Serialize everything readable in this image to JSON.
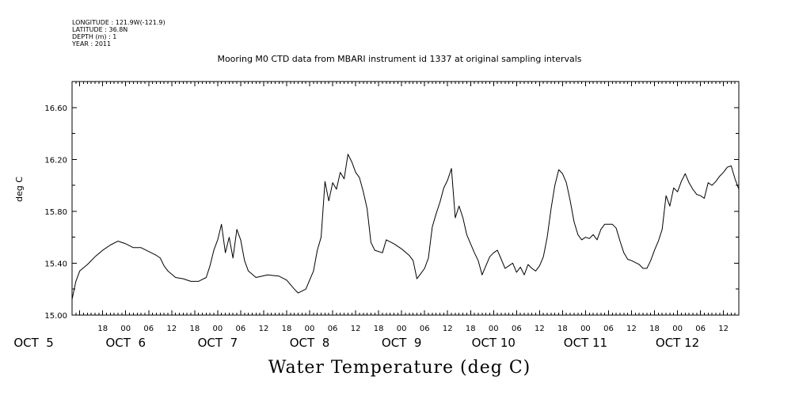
{
  "header": {
    "meta_lines": [
      "LONGITUDE : 121.9W(-121.9)",
      "LATITUDE : 36.8N",
      "DEPTH (m) : 1",
      "YEAR : 2011"
    ],
    "title": "Mooring M0 CTD data from MBARI instrument id 1337 at original sampling intervals"
  },
  "chart_data": {
    "type": "line",
    "title": "Mooring M0 CTD data from MBARI instrument id 1337 at original sampling intervals",
    "xlabel": "Water Temperature (deg C)",
    "ylabel": "deg C",
    "ylim": [
      15.0,
      16.8
    ],
    "yticks": [
      "15.00",
      "15.40",
      "15.80",
      "16.20",
      "16.60"
    ],
    "xlim": [
      "2011-10-05T10:00",
      "2011-10-12T16:00"
    ],
    "x_hour_ticks": [
      {
        "t": "2011-10-05T18:00",
        "label": "18"
      },
      {
        "t": "2011-10-06T00:00",
        "label": "00"
      },
      {
        "t": "2011-10-06T06:00",
        "label": "06"
      },
      {
        "t": "2011-10-06T12:00",
        "label": "12"
      },
      {
        "t": "2011-10-06T18:00",
        "label": "18"
      },
      {
        "t": "2011-10-07T00:00",
        "label": "00"
      },
      {
        "t": "2011-10-07T06:00",
        "label": "06"
      },
      {
        "t": "2011-10-07T12:00",
        "label": "12"
      },
      {
        "t": "2011-10-07T18:00",
        "label": "18"
      },
      {
        "t": "2011-10-08T00:00",
        "label": "00"
      },
      {
        "t": "2011-10-08T06:00",
        "label": "06"
      },
      {
        "t": "2011-10-08T12:00",
        "label": "12"
      },
      {
        "t": "2011-10-08T18:00",
        "label": "18"
      },
      {
        "t": "2011-10-09T00:00",
        "label": "00"
      },
      {
        "t": "2011-10-09T06:00",
        "label": "06"
      },
      {
        "t": "2011-10-09T12:00",
        "label": "12"
      },
      {
        "t": "2011-10-09T18:00",
        "label": "18"
      },
      {
        "t": "2011-10-10T00:00",
        "label": "00"
      },
      {
        "t": "2011-10-10T06:00",
        "label": "06"
      },
      {
        "t": "2011-10-10T12:00",
        "label": "12"
      },
      {
        "t": "2011-10-10T18:00",
        "label": "18"
      },
      {
        "t": "2011-10-11T00:00",
        "label": "00"
      },
      {
        "t": "2011-10-11T06:00",
        "label": "06"
      },
      {
        "t": "2011-10-11T12:00",
        "label": "12"
      },
      {
        "t": "2011-10-11T18:00",
        "label": "18"
      },
      {
        "t": "2011-10-12T00:00",
        "label": "00"
      },
      {
        "t": "2011-10-12T06:00",
        "label": "06"
      },
      {
        "t": "2011-10-12T12:00",
        "label": "12"
      }
    ],
    "x_day_labels": [
      {
        "t": "2011-10-05T00:00",
        "label": "OCT  5"
      },
      {
        "t": "2011-10-06T00:00",
        "label": "OCT  6"
      },
      {
        "t": "2011-10-07T00:00",
        "label": "OCT  7"
      },
      {
        "t": "2011-10-08T00:00",
        "label": "OCT  8"
      },
      {
        "t": "2011-10-09T00:00",
        "label": "OCT  9"
      },
      {
        "t": "2011-10-10T00:00",
        "label": "OCT 10"
      },
      {
        "t": "2011-10-11T00:00",
        "label": "OCT 11"
      },
      {
        "t": "2011-10-12T00:00",
        "label": "OCT 12"
      }
    ],
    "series": [
      {
        "color": "#000000",
        "points": [
          [
            "2011-10-05T10:00",
            15.12
          ],
          [
            "2011-10-05T11:00",
            15.26
          ],
          [
            "2011-10-05T12:00",
            15.34
          ],
          [
            "2011-10-05T14:00",
            15.39
          ],
          [
            "2011-10-05T16:00",
            15.45
          ],
          [
            "2011-10-05T18:00",
            15.5
          ],
          [
            "2011-10-05T20:00",
            15.54
          ],
          [
            "2011-10-05T22:00",
            15.57
          ],
          [
            "2011-10-06T00:00",
            15.55
          ],
          [
            "2011-10-06T02:00",
            15.52
          ],
          [
            "2011-10-06T04:00",
            15.52
          ],
          [
            "2011-10-06T06:00",
            15.49
          ],
          [
            "2011-10-06T08:00",
            15.46
          ],
          [
            "2011-10-06T09:00",
            15.44
          ],
          [
            "2011-10-06T10:00",
            15.38
          ],
          [
            "2011-10-06T11:00",
            15.34
          ],
          [
            "2011-10-06T13:00",
            15.29
          ],
          [
            "2011-10-06T15:00",
            15.28
          ],
          [
            "2011-10-06T17:00",
            15.26
          ],
          [
            "2011-10-06T19:00",
            15.26
          ],
          [
            "2011-10-06T21:00",
            15.29
          ],
          [
            "2011-10-06T22:00",
            15.38
          ],
          [
            "2011-10-06T23:00",
            15.5
          ],
          [
            "2011-10-07T00:00",
            15.58
          ],
          [
            "2011-10-07T01:00",
            15.7
          ],
          [
            "2011-10-07T02:00",
            15.48
          ],
          [
            "2011-10-07T03:00",
            15.6
          ],
          [
            "2011-10-07T04:00",
            15.44
          ],
          [
            "2011-10-07T05:00",
            15.66
          ],
          [
            "2011-10-07T06:00",
            15.58
          ],
          [
            "2011-10-07T07:00",
            15.42
          ],
          [
            "2011-10-07T08:00",
            15.34
          ],
          [
            "2011-10-07T10:00",
            15.29
          ],
          [
            "2011-10-07T13:00",
            15.31
          ],
          [
            "2011-10-07T16:00",
            15.3
          ],
          [
            "2011-10-07T18:00",
            15.27
          ],
          [
            "2011-10-07T20:00",
            15.2
          ],
          [
            "2011-10-07T21:00",
            15.17
          ],
          [
            "2011-10-07T23:00",
            15.2
          ],
          [
            "2011-10-08T00:00",
            15.27
          ],
          [
            "2011-10-08T01:00",
            15.34
          ],
          [
            "2011-10-08T02:00",
            15.5
          ],
          [
            "2011-10-08T03:00",
            15.6
          ],
          [
            "2011-10-08T04:00",
            16.03
          ],
          [
            "2011-10-08T05:00",
            15.88
          ],
          [
            "2011-10-08T06:00",
            16.02
          ],
          [
            "2011-10-08T07:00",
            15.97
          ],
          [
            "2011-10-08T08:00",
            16.1
          ],
          [
            "2011-10-08T09:00",
            16.05
          ],
          [
            "2011-10-08T10:00",
            16.24
          ],
          [
            "2011-10-08T11:00",
            16.18
          ],
          [
            "2011-10-08T12:00",
            16.1
          ],
          [
            "2011-10-08T13:00",
            16.06
          ],
          [
            "2011-10-08T14:00",
            15.95
          ],
          [
            "2011-10-08T15:00",
            15.82
          ],
          [
            "2011-10-08T16:00",
            15.56
          ],
          [
            "2011-10-08T17:00",
            15.5
          ],
          [
            "2011-10-08T19:00",
            15.48
          ],
          [
            "2011-10-08T20:00",
            15.58
          ],
          [
            "2011-10-08T22:00",
            15.55
          ],
          [
            "2011-10-09T00:00",
            15.51
          ],
          [
            "2011-10-09T02:00",
            15.46
          ],
          [
            "2011-10-09T03:00",
            15.42
          ],
          [
            "2011-10-09T04:00",
            15.28
          ],
          [
            "2011-10-09T05:00",
            15.32
          ],
          [
            "2011-10-09T06:00",
            15.36
          ],
          [
            "2011-10-09T07:00",
            15.44
          ],
          [
            "2011-10-09T08:00",
            15.68
          ],
          [
            "2011-10-09T09:00",
            15.78
          ],
          [
            "2011-10-09T10:00",
            15.87
          ],
          [
            "2011-10-09T11:00",
            15.98
          ],
          [
            "2011-10-09T12:00",
            16.04
          ],
          [
            "2011-10-09T13:00",
            16.13
          ],
          [
            "2011-10-09T14:00",
            15.75
          ],
          [
            "2011-10-09T15:00",
            15.84
          ],
          [
            "2011-10-09T16:00",
            15.75
          ],
          [
            "2011-10-09T17:00",
            15.62
          ],
          [
            "2011-10-09T18:00",
            15.55
          ],
          [
            "2011-10-09T19:00",
            15.48
          ],
          [
            "2011-10-09T20:00",
            15.42
          ],
          [
            "2011-10-09T21:00",
            15.31
          ],
          [
            "2011-10-09T22:00",
            15.38
          ],
          [
            "2011-10-09T23:00",
            15.45
          ],
          [
            "2011-10-10T00:00",
            15.48
          ],
          [
            "2011-10-10T01:00",
            15.5
          ],
          [
            "2011-10-10T02:00",
            15.43
          ],
          [
            "2011-10-10T03:00",
            15.36
          ],
          [
            "2011-10-10T04:00",
            15.38
          ],
          [
            "2011-10-10T05:00",
            15.4
          ],
          [
            "2011-10-10T06:00",
            15.33
          ],
          [
            "2011-10-10T07:00",
            15.37
          ],
          [
            "2011-10-10T08:00",
            15.31
          ],
          [
            "2011-10-10T09:00",
            15.39
          ],
          [
            "2011-10-10T10:00",
            15.36
          ],
          [
            "2011-10-10T11:00",
            15.34
          ],
          [
            "2011-10-10T12:00",
            15.38
          ],
          [
            "2011-10-10T13:00",
            15.45
          ],
          [
            "2011-10-10T14:00",
            15.6
          ],
          [
            "2011-10-10T15:00",
            15.82
          ],
          [
            "2011-10-10T16:00",
            16.0
          ],
          [
            "2011-10-10T17:00",
            16.12
          ],
          [
            "2011-10-10T18:00",
            16.09
          ],
          [
            "2011-10-10T19:00",
            16.02
          ],
          [
            "2011-10-10T20:00",
            15.88
          ],
          [
            "2011-10-10T21:00",
            15.72
          ],
          [
            "2011-10-10T22:00",
            15.62
          ],
          [
            "2011-10-10T23:00",
            15.58
          ],
          [
            "2011-10-11T00:00",
            15.6
          ],
          [
            "2011-10-11T01:00",
            15.59
          ],
          [
            "2011-10-11T02:00",
            15.62
          ],
          [
            "2011-10-11T03:00",
            15.58
          ],
          [
            "2011-10-11T04:00",
            15.66
          ],
          [
            "2011-10-11T05:00",
            15.7
          ],
          [
            "2011-10-11T07:00",
            15.7
          ],
          [
            "2011-10-11T08:00",
            15.67
          ],
          [
            "2011-10-11T09:00",
            15.57
          ],
          [
            "2011-10-11T10:00",
            15.48
          ],
          [
            "2011-10-11T11:00",
            15.43
          ],
          [
            "2011-10-11T12:00",
            15.42
          ],
          [
            "2011-10-11T14:00",
            15.39
          ],
          [
            "2011-10-11T15:00",
            15.36
          ],
          [
            "2011-10-11T16:00",
            15.36
          ],
          [
            "2011-10-11T17:00",
            15.42
          ],
          [
            "2011-10-11T18:00",
            15.5
          ],
          [
            "2011-10-11T19:00",
            15.57
          ],
          [
            "2011-10-11T20:00",
            15.66
          ],
          [
            "2011-10-11T21:00",
            15.92
          ],
          [
            "2011-10-11T22:00",
            15.84
          ],
          [
            "2011-10-11T23:00",
            15.98
          ],
          [
            "2011-10-12T00:00",
            15.95
          ],
          [
            "2011-10-12T01:00",
            16.03
          ],
          [
            "2011-10-12T02:00",
            16.09
          ],
          [
            "2011-10-12T03:00",
            16.02
          ],
          [
            "2011-10-12T04:00",
            15.97
          ],
          [
            "2011-10-12T05:00",
            15.93
          ],
          [
            "2011-10-12T06:00",
            15.92
          ],
          [
            "2011-10-12T07:00",
            15.9
          ],
          [
            "2011-10-12T08:00",
            16.02
          ],
          [
            "2011-10-12T09:00",
            16.0
          ],
          [
            "2011-10-12T10:00",
            16.03
          ],
          [
            "2011-10-12T11:00",
            16.07
          ],
          [
            "2011-10-12T12:00",
            16.1
          ],
          [
            "2011-10-12T13:00",
            16.14
          ],
          [
            "2011-10-12T14:00",
            16.15
          ],
          [
            "2011-10-12T15:00",
            16.05
          ],
          [
            "2011-10-12T16:00",
            15.97
          ]
        ]
      }
    ]
  }
}
